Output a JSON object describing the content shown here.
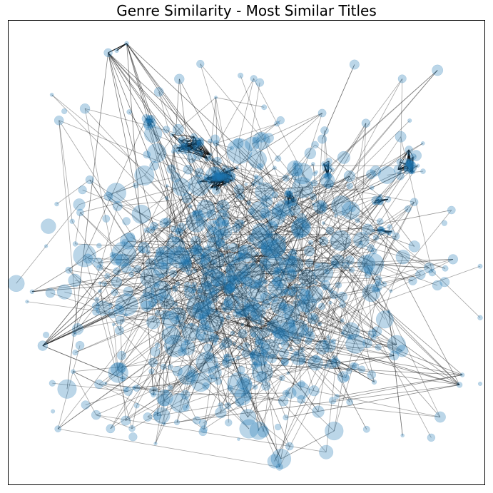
{
  "window": {
    "title": "Genre Similarity - Most Similar Titles"
  },
  "colors": {
    "node": "#1f77b4",
    "edge": "#000000",
    "frame": "#000000",
    "background": "#ffffff"
  },
  "chart_data": {
    "type": "network",
    "title": "Genre Similarity - Most Similar Titles",
    "axes": "off",
    "grid": false,
    "legend": "none",
    "node_alpha": 0.3,
    "edge_alpha": 0.35
  }
}
